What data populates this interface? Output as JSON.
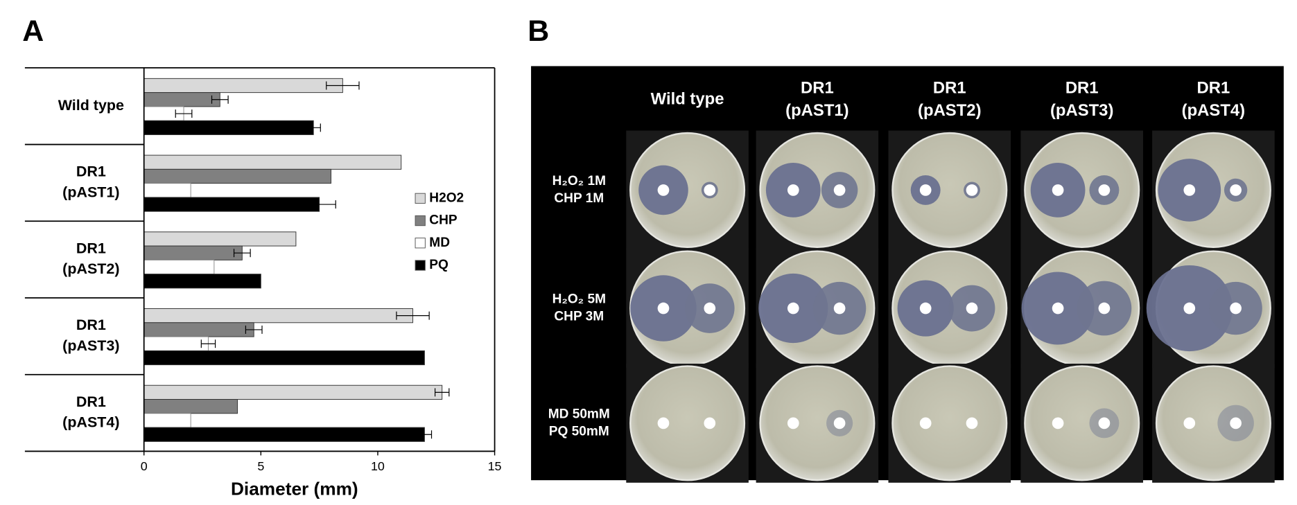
{
  "panel_labels": [
    "A",
    "B"
  ],
  "chart_data": {
    "type": "hbar",
    "xlabel": "Diameter (mm)",
    "categories": [
      [
        "Wild type"
      ],
      [
        "DR1",
        "(pAST1)"
      ],
      [
        "DR1",
        "(pAST2)"
      ],
      [
        "DR1",
        "(pAST3)"
      ],
      [
        "DR1",
        "(pAST4)"
      ]
    ],
    "series": [
      {
        "name": "H2O2",
        "color": "#d9d9d9",
        "values": [
          8.5,
          11.0,
          6.5,
          11.5,
          12.75
        ],
        "errors": [
          0.7,
          null,
          null,
          0.7,
          0.3
        ]
      },
      {
        "name": "CHP",
        "color": "#808080",
        "values": [
          3.25,
          8.0,
          4.2,
          4.7,
          4.0
        ],
        "errors": [
          0.35,
          null,
          0.35,
          0.35,
          null
        ]
      },
      {
        "name": "MD",
        "color": "#ffffff",
        "values": [
          1.7,
          2.0,
          3.0,
          2.75,
          2.0
        ],
        "errors": [
          0.35,
          null,
          null,
          0.3,
          null
        ]
      },
      {
        "name": "PQ",
        "color": "#000000",
        "values": [
          7.25,
          7.5,
          5.0,
          12.0,
          12.0
        ],
        "errors": [
          0.3,
          0.7,
          null,
          null,
          0.3
        ]
      }
    ],
    "xlim": [
      0,
      15
    ],
    "xticks": [
      0,
      5,
      10,
      15
    ],
    "grid": false,
    "legend": "right"
  },
  "photo_panel": {
    "columns": [
      [
        "Wild type"
      ],
      [
        "DR1",
        "(pAST1)"
      ],
      [
        "DR1",
        "(pAST2)"
      ],
      [
        "DR1",
        "(pAST3)"
      ],
      [
        "DR1",
        "(pAST4)"
      ]
    ],
    "rows": [
      [
        "H₂O₂ 1M",
        "CHP 1M"
      ],
      [
        "H₂O₂ 5M",
        "CHP 3M"
      ],
      [
        "MD 50mM",
        "PQ 50mM"
      ]
    ]
  }
}
